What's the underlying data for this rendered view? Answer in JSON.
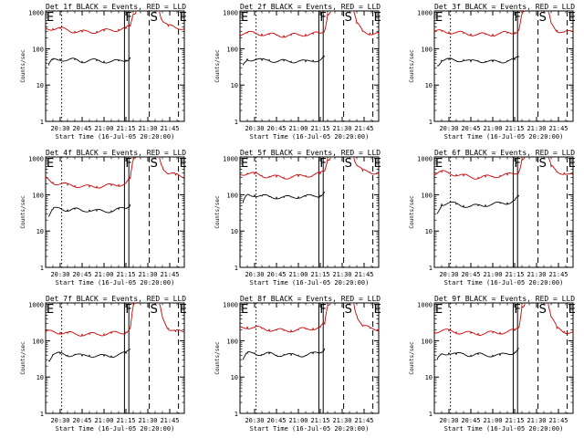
{
  "figure": {
    "xtick_labels": [
      "20:30",
      "20:45",
      "21:00",
      "21:15",
      "21:30",
      "21:45"
    ],
    "ytick_labels": [
      "1",
      "10",
      "100",
      "1000"
    ],
    "ylabel": "Counts/sec",
    "xlabel": "Start Time (16-Jul-05 20:20:00)",
    "markers": [
      {
        "label": "F",
        "t": 54
      },
      {
        "label": "S",
        "t": 71
      },
      {
        "label": "E",
        "t": 91
      }
    ],
    "colors": {
      "events": "#000000",
      "lld": "#cc0000"
    }
  },
  "chart_data": [
    {
      "type": "line",
      "title": "Det 1f BLACK = Events, RED = LLD",
      "xlabel": "Start Time (16-Jul-05 20:20:00)",
      "ylabel": "Counts/sec",
      "x_unit": "minutes after 20:20:00",
      "xlim": [
        0,
        95
      ],
      "ylim": [
        1,
        1100
      ],
      "yscale": "log",
      "series": [
        {
          "name": "Events",
          "color": "#000000",
          "x": [
            2,
            5,
            10,
            15,
            20,
            25,
            30,
            35,
            40,
            45,
            50,
            55,
            58,
            59,
            62
          ],
          "y": [
            35,
            50,
            52,
            48,
            50,
            45,
            48,
            47,
            45,
            44,
            46,
            49,
            58,
            null,
            60
          ]
        },
        {
          "name": "LLD",
          "color": "#cc0000",
          "x": [
            0,
            5,
            10,
            15,
            20,
            25,
            30,
            35,
            40,
            45,
            50,
            55,
            58,
            60,
            62,
            71,
            78,
            80,
            84,
            89,
            95
          ],
          "y": [
            370,
            360,
            355,
            330,
            300,
            290,
            290,
            300,
            310,
            330,
            340,
            360,
            420,
            900,
            1050,
            null,
            1050,
            600,
            420,
            380,
            380
          ]
        }
      ]
    },
    {
      "type": "line",
      "title": "Det 2f BLACK = Events, RED = LLD",
      "xlabel": "Start Time (16-Jul-05 20:20:00)",
      "ylabel": "Counts/sec",
      "x_unit": "minutes after 20:20:00",
      "xlim": [
        0,
        95
      ],
      "ylim": [
        1,
        1100
      ],
      "yscale": "log",
      "series": [
        {
          "name": "Events",
          "color": "#000000",
          "x": [
            2,
            5,
            10,
            15,
            20,
            25,
            30,
            35,
            40,
            45,
            50,
            55,
            58,
            59,
            62
          ],
          "y": [
            35,
            52,
            50,
            48,
            50,
            44,
            46,
            45,
            46,
            44,
            48,
            49,
            60,
            null,
            60
          ]
        },
        {
          "name": "LLD",
          "color": "#cc0000",
          "x": [
            0,
            5,
            10,
            15,
            20,
            25,
            30,
            35,
            40,
            45,
            50,
            55,
            58,
            60,
            62,
            71,
            78,
            80,
            84,
            89,
            95
          ],
          "y": [
            260,
            270,
            270,
            255,
            245,
            235,
            230,
            235,
            240,
            250,
            255,
            265,
            320,
            900,
            1050,
            null,
            1050,
            500,
            300,
            270,
            260
          ]
        }
      ]
    },
    {
      "type": "line",
      "title": "Det 3f BLACK = Events, RED = LLD",
      "xlabel": "Start Time (16-Jul-05 20:20:00)",
      "ylabel": "Counts/sec",
      "x_unit": "minutes after 20:20:00",
      "xlim": [
        0,
        95
      ],
      "ylim": [
        1,
        1100
      ],
      "yscale": "log",
      "series": [
        {
          "name": "Events",
          "color": "#000000",
          "x": [
            2,
            5,
            10,
            15,
            20,
            25,
            30,
            35,
            40,
            45,
            50,
            55,
            58,
            59,
            62
          ],
          "y": [
            35,
            48,
            50,
            47,
            50,
            44,
            47,
            45,
            44,
            44,
            47,
            50,
            60,
            null,
            58
          ]
        },
        {
          "name": "LLD",
          "color": "#cc0000",
          "x": [
            0,
            5,
            10,
            15,
            20,
            25,
            30,
            35,
            40,
            45,
            50,
            55,
            58,
            60,
            62,
            71,
            78,
            80,
            84,
            89,
            95
          ],
          "y": [
            290,
            300,
            290,
            275,
            265,
            255,
            245,
            245,
            250,
            260,
            270,
            285,
            340,
            900,
            1050,
            null,
            1050,
            500,
            320,
            290,
            280
          ]
        }
      ]
    },
    {
      "type": "line",
      "title": "Det 4f BLACK = Events, RED = LLD",
      "xlabel": "Start Time (16-Jul-05 20:20:00)",
      "ylabel": "Counts/sec",
      "x_unit": "minutes after 20:20:00",
      "xlim": [
        0,
        95
      ],
      "ylim": [
        1,
        1100
      ],
      "yscale": "log",
      "series": [
        {
          "name": "Events",
          "color": "#000000",
          "x": [
            2,
            5,
            10,
            15,
            20,
            25,
            30,
            35,
            40,
            45,
            50,
            55,
            58,
            59,
            62
          ],
          "y": [
            25,
            40,
            42,
            38,
            40,
            36,
            38,
            36,
            35,
            36,
            40,
            42,
            55,
            null,
            50
          ]
        },
        {
          "name": "LLD",
          "color": "#cc0000",
          "x": [
            0,
            5,
            10,
            15,
            20,
            25,
            30,
            35,
            40,
            45,
            50,
            55,
            58,
            60,
            62,
            71,
            78,
            80,
            84,
            89,
            95
          ],
          "y": [
            280,
            220,
            200,
            185,
            180,
            170,
            165,
            170,
            175,
            180,
            190,
            210,
            280,
            900,
            1050,
            null,
            1050,
            600,
            380,
            350,
            320
          ]
        }
      ]
    },
    {
      "type": "line",
      "title": "Det 5f BLACK = Events, RED = LLD",
      "xlabel": "Start Time (16-Jul-05 20:20:00)",
      "ylabel": "Counts/sec",
      "x_unit": "minutes after 20:20:00",
      "xlim": [
        0,
        95
      ],
      "ylim": [
        1,
        1100
      ],
      "yscale": "log",
      "series": [
        {
          "name": "Events",
          "color": "#000000",
          "x": [
            2,
            5,
            10,
            15,
            20,
            25,
            30,
            35,
            40,
            45,
            50,
            55,
            58,
            59,
            62
          ],
          "y": [
            60,
            100,
            98,
            92,
            88,
            85,
            84,
            86,
            88,
            90,
            92,
            96,
            120,
            null,
            110
          ]
        },
        {
          "name": "LLD",
          "color": "#cc0000",
          "x": [
            0,
            5,
            10,
            15,
            20,
            25,
            30,
            35,
            40,
            45,
            50,
            55,
            58,
            60,
            62,
            71,
            78,
            80,
            84,
            89,
            95
          ],
          "y": [
            380,
            390,
            370,
            340,
            320,
            310,
            300,
            310,
            320,
            340,
            350,
            380,
            450,
            950,
            1050,
            null,
            1050,
            650,
            450,
            420,
            410
          ]
        }
      ]
    },
    {
      "type": "line",
      "title": "Det 6f BLACK = Events, RED = LLD",
      "xlabel": "Start Time (16-Jul-05 20:20:00)",
      "ylabel": "Counts/sec",
      "x_unit": "minutes after 20:20:00",
      "xlim": [
        0,
        95
      ],
      "ylim": [
        1,
        1100
      ],
      "yscale": "log",
      "series": [
        {
          "name": "Events",
          "color": "#000000",
          "x": [
            2,
            5,
            10,
            15,
            20,
            25,
            30,
            35,
            40,
            45,
            50,
            55,
            58,
            59,
            62
          ],
          "y": [
            30,
            55,
            60,
            55,
            50,
            48,
            50,
            52,
            55,
            58,
            60,
            70,
            90,
            null,
            80
          ]
        },
        {
          "name": "LLD",
          "color": "#cc0000",
          "x": [
            0,
            5,
            10,
            15,
            20,
            25,
            30,
            35,
            40,
            45,
            50,
            55,
            58,
            60,
            62,
            71,
            78,
            80,
            84,
            89,
            95
          ],
          "y": [
            380,
            420,
            400,
            360,
            330,
            310,
            300,
            310,
            320,
            340,
            350,
            380,
            450,
            950,
            1050,
            null,
            1050,
            600,
            430,
            400,
            330
          ]
        }
      ]
    },
    {
      "type": "line",
      "title": "Det 7f BLACK = Events, RED = LLD",
      "xlabel": "Start Time (16-Jul-05 20:20:00)",
      "ylabel": "Counts/sec",
      "x_unit": "minutes after 20:20:00",
      "xlim": [
        0,
        95
      ],
      "ylim": [
        1,
        1100
      ],
      "yscale": "log",
      "series": [
        {
          "name": "Events",
          "color": "#000000",
          "x": [
            2,
            5,
            10,
            15,
            20,
            25,
            30,
            35,
            40,
            45,
            50,
            55,
            58,
            59,
            62
          ],
          "y": [
            28,
            42,
            44,
            40,
            42,
            38,
            40,
            38,
            38,
            38,
            42,
            45,
            60,
            null,
            55
          ]
        },
        {
          "name": "LLD",
          "color": "#cc0000",
          "x": [
            0,
            5,
            10,
            15,
            20,
            25,
            30,
            35,
            40,
            45,
            50,
            55,
            58,
            60,
            62,
            71,
            78,
            80,
            84,
            89,
            95
          ],
          "y": [
            170,
            180,
            170,
            160,
            155,
            150,
            150,
            152,
            155,
            160,
            165,
            175,
            220,
            900,
            1050,
            null,
            1050,
            450,
            220,
            180,
            170
          ]
        }
      ]
    },
    {
      "type": "line",
      "title": "Det 8f BLACK = Events, RED = LLD",
      "xlabel": "Start Time (16-Jul-05 20:20:00)",
      "ylabel": "Counts/sec",
      "x_unit": "minutes after 20:20:00",
      "xlim": [
        0,
        95
      ],
      "ylim": [
        1,
        1100
      ],
      "yscale": "log",
      "series": [
        {
          "name": "Events",
          "color": "#000000",
          "x": [
            2,
            5,
            10,
            15,
            20,
            25,
            30,
            35,
            40,
            45,
            50,
            55,
            58,
            59,
            62
          ],
          "y": [
            30,
            45,
            46,
            42,
            44,
            40,
            42,
            40,
            40,
            40,
            44,
            48,
            62,
            null,
            55
          ]
        },
        {
          "name": "LLD",
          "color": "#cc0000",
          "x": [
            0,
            5,
            10,
            15,
            20,
            25,
            30,
            35,
            40,
            45,
            50,
            55,
            58,
            60,
            62,
            71,
            78,
            80,
            84,
            89,
            95
          ],
          "y": [
            230,
            240,
            230,
            215,
            205,
            195,
            190,
            195,
            200,
            210,
            220,
            235,
            290,
            900,
            1050,
            null,
            1050,
            500,
            250,
            220,
            210
          ]
        }
      ]
    },
    {
      "type": "line",
      "title": "Det 9f BLACK = Events, RED = LLD",
      "xlabel": "Start Time (16-Jul-05 20:20:00)",
      "ylabel": "Counts/sec",
      "x_unit": "minutes after 20:20:00",
      "xlim": [
        0,
        95
      ],
      "ylim": [
        1,
        1100
      ],
      "yscale": "log",
      "series": [
        {
          "name": "Events",
          "color": "#000000",
          "x": [
            2,
            5,
            10,
            15,
            20,
            25,
            30,
            35,
            40,
            45,
            50,
            55,
            58,
            59,
            62
          ],
          "y": [
            30,
            44,
            46,
            42,
            44,
            40,
            42,
            40,
            40,
            40,
            44,
            48,
            62,
            null,
            55
          ]
        },
        {
          "name": "LLD",
          "color": "#cc0000",
          "x": [
            0,
            5,
            10,
            15,
            20,
            25,
            30,
            35,
            40,
            45,
            50,
            55,
            58,
            60,
            62,
            71,
            78,
            80,
            84,
            89,
            95
          ],
          "y": [
            180,
            190,
            185,
            175,
            165,
            160,
            158,
            160,
            165,
            170,
            175,
            190,
            240,
            900,
            1050,
            null,
            1050,
            450,
            220,
            180,
            170
          ]
        }
      ]
    }
  ]
}
